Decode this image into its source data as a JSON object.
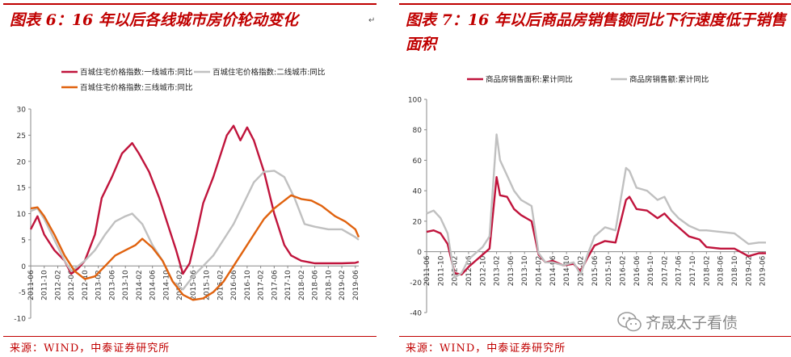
{
  "left_panel": {
    "title": "图表 6：16 年以后各线城市房价轮动变化",
    "source": "来源：WIND，中泰证券研究所"
  },
  "right_panel": {
    "title": "图表 7：16 年以后商品房销售额同比下行速度低于销售面积",
    "source": "来源：WIND，中泰证券研究所"
  },
  "watermark": "齐晟太子看债",
  "chart_data": [
    {
      "type": "line",
      "title": "",
      "ylim": [
        -10,
        30
      ],
      "yticks": [
        -10,
        -5,
        0,
        5,
        10,
        15,
        20,
        25,
        30
      ],
      "xtick_labels": [
        "2011-06",
        "2011-10",
        "2012-02",
        "2012-06",
        "2012-10",
        "2013-02",
        "2013-06",
        "2013-10",
        "2014-02",
        "2014-06",
        "2014-10",
        "2015-02",
        "2015-06",
        "2015-10",
        "2016-02",
        "2016-06",
        "2016-10",
        "2017-02",
        "2017-06",
        "2017-10",
        "2018-02",
        "2018-06",
        "2018-10",
        "2019-02",
        "2019-06"
      ],
      "x_start": "2011-06",
      "x_end": "2019-07",
      "legend_position": "top",
      "series": [
        {
          "name": "百城住宅价格指数:一线城市:同比",
          "color": "#c0143c",
          "points": [
            [
              "2011-06",
              7
            ],
            [
              "2011-08",
              9.5
            ],
            [
              "2011-10",
              6
            ],
            [
              "2012-01",
              3
            ],
            [
              "2012-04",
              1
            ],
            [
              "2012-06",
              -1.5
            ],
            [
              "2012-08",
              -0.5
            ],
            [
              "2012-10",
              1
            ],
            [
              "2013-01",
              6
            ],
            [
              "2013-03",
              13
            ],
            [
              "2013-06",
              17
            ],
            [
              "2013-09",
              21.5
            ],
            [
              "2013-12",
              23.5
            ],
            [
              "2014-02",
              21.5
            ],
            [
              "2014-05",
              18
            ],
            [
              "2014-08",
              13
            ],
            [
              "2014-11",
              7
            ],
            [
              "2015-01",
              3
            ],
            [
              "2015-03",
              -1.5
            ],
            [
              "2015-05",
              0.5
            ],
            [
              "2015-07",
              6
            ],
            [
              "2015-09",
              12
            ],
            [
              "2015-12",
              17
            ],
            [
              "2016-02",
              21
            ],
            [
              "2016-04",
              25
            ],
            [
              "2016-06",
              26.8
            ],
            [
              "2016-08",
              24
            ],
            [
              "2016-10",
              26.5
            ],
            [
              "2016-12",
              24
            ],
            [
              "2017-03",
              18
            ],
            [
              "2017-06",
              10
            ],
            [
              "2017-09",
              4
            ],
            [
              "2017-11",
              2
            ],
            [
              "2018-02",
              1
            ],
            [
              "2018-06",
              0.5
            ],
            [
              "2018-10",
              0.5
            ],
            [
              "2019-02",
              0.5
            ],
            [
              "2019-06",
              0.6
            ],
            [
              "2019-07",
              0.8
            ]
          ]
        },
        {
          "name": "百城住宅价格指数:二线城市:同比",
          "color": "#c0c0c0",
          "points": [
            [
              "2011-06",
              10.5
            ],
            [
              "2011-08",
              11
            ],
            [
              "2011-10",
              9
            ],
            [
              "2012-01",
              5
            ],
            [
              "2012-04",
              1
            ],
            [
              "2012-06",
              -1
            ],
            [
              "2012-08",
              0
            ],
            [
              "2012-10",
              1
            ],
            [
              "2013-01",
              3
            ],
            [
              "2013-04",
              6
            ],
            [
              "2013-07",
              8.5
            ],
            [
              "2013-10",
              9.5
            ],
            [
              "2013-12",
              10
            ],
            [
              "2014-03",
              8
            ],
            [
              "2014-06",
              4
            ],
            [
              "2014-09",
              1
            ],
            [
              "2014-12",
              -3
            ],
            [
              "2015-03",
              -4.5
            ],
            [
              "2015-06",
              -2
            ],
            [
              "2015-09",
              0
            ],
            [
              "2015-12",
              2
            ],
            [
              "2016-03",
              5
            ],
            [
              "2016-06",
              8
            ],
            [
              "2016-09",
              12
            ],
            [
              "2016-12",
              16
            ],
            [
              "2017-03",
              18
            ],
            [
              "2017-06",
              18.2
            ],
            [
              "2017-09",
              17
            ],
            [
              "2017-12",
              13
            ],
            [
              "2018-03",
              8
            ],
            [
              "2018-06",
              7.5
            ],
            [
              "2018-10",
              7
            ],
            [
              "2019-02",
              7
            ],
            [
              "2019-06",
              5.5
            ],
            [
              "2019-07",
              5
            ]
          ]
        },
        {
          "name": "百城住宅价格指数:三线城市:同比",
          "color": "#e0620e",
          "points": [
            [
              "2011-06",
              11
            ],
            [
              "2011-08",
              11.2
            ],
            [
              "2011-10",
              9.5
            ],
            [
              "2012-01",
              6
            ],
            [
              "2012-04",
              2
            ],
            [
              "2012-07",
              -1
            ],
            [
              "2012-10",
              -2.5
            ],
            [
              "2013-01",
              -2
            ],
            [
              "2013-04",
              0
            ],
            [
              "2013-07",
              2
            ],
            [
              "2013-10",
              3
            ],
            [
              "2014-01",
              4
            ],
            [
              "2014-03",
              5.2
            ],
            [
              "2014-06",
              3.5
            ],
            [
              "2014-09",
              1
            ],
            [
              "2014-12",
              -3
            ],
            [
              "2015-03",
              -5.5
            ],
            [
              "2015-06",
              -6.5
            ],
            [
              "2015-09",
              -6.2
            ],
            [
              "2015-12",
              -5
            ],
            [
              "2016-03",
              -3
            ],
            [
              "2016-06",
              0
            ],
            [
              "2016-09",
              3
            ],
            [
              "2016-12",
              6
            ],
            [
              "2017-03",
              9
            ],
            [
              "2017-06",
              11
            ],
            [
              "2017-09",
              12.5
            ],
            [
              "2017-11",
              13.5
            ],
            [
              "2018-02",
              12.8
            ],
            [
              "2018-05",
              12.5
            ],
            [
              "2018-08",
              11.5
            ],
            [
              "2018-12",
              9.5
            ],
            [
              "2019-03",
              8.5
            ],
            [
              "2019-06",
              7
            ],
            [
              "2019-07",
              5.5
            ]
          ]
        }
      ]
    },
    {
      "type": "line",
      "title": "",
      "ylim": [
        -40,
        100
      ],
      "yticks": [
        -40,
        -20,
        0,
        20,
        40,
        60,
        80,
        100
      ],
      "xtick_labels": [
        "2011-06",
        "2011-10",
        "2012-02",
        "2012-06",
        "2012-10",
        "2013-02",
        "2013-06",
        "2013-10",
        "2014-02",
        "2014-06",
        "2014-10",
        "2015-02",
        "2015-06",
        "2015-10",
        "2016-02",
        "2016-06",
        "2016-10",
        "2017-02",
        "2017-06",
        "2017-10",
        "2018-02",
        "2018-06",
        "2018-10",
        "2019-02",
        "2019-06"
      ],
      "x_start": "2011-06",
      "x_end": "2019-07",
      "legend_position": "top",
      "series": [
        {
          "name": "商品房销售面积:累计同比",
          "color": "#c0143c",
          "points": [
            [
              "2011-06",
              13
            ],
            [
              "2011-08",
              14
            ],
            [
              "2011-10",
              12
            ],
            [
              "2011-12",
              5
            ],
            [
              "2012-02",
              -14
            ],
            [
              "2012-04",
              -15
            ],
            [
              "2012-06",
              -10
            ],
            [
              "2012-08",
              -6
            ],
            [
              "2012-10",
              -2
            ],
            [
              "2012-12",
              2
            ],
            [
              "2013-02",
              49
            ],
            [
              "2013-03",
              37
            ],
            [
              "2013-05",
              36
            ],
            [
              "2013-07",
              28
            ],
            [
              "2013-09",
              24
            ],
            [
              "2013-12",
              20
            ],
            [
              "2014-02",
              -2
            ],
            [
              "2014-04",
              -7
            ],
            [
              "2014-06",
              -6
            ],
            [
              "2014-09",
              -9
            ],
            [
              "2014-12",
              -8
            ],
            [
              "2015-02",
              -13
            ],
            [
              "2015-04",
              -4
            ],
            [
              "2015-06",
              4
            ],
            [
              "2015-09",
              7
            ],
            [
              "2015-12",
              6
            ],
            [
              "2016-03",
              34
            ],
            [
              "2016-04",
              36
            ],
            [
              "2016-06",
              28
            ],
            [
              "2016-09",
              27
            ],
            [
              "2016-12",
              22
            ],
            [
              "2017-02",
              25
            ],
            [
              "2017-04",
              20
            ],
            [
              "2017-06",
              16
            ],
            [
              "2017-09",
              10
            ],
            [
              "2017-12",
              8
            ],
            [
              "2018-02",
              3
            ],
            [
              "2018-06",
              2
            ],
            [
              "2018-10",
              2
            ],
            [
              "2019-02",
              -3
            ],
            [
              "2019-05",
              -1
            ],
            [
              "2019-07",
              -1
            ]
          ]
        },
        {
          "name": "商品房销售额:累计同比",
          "color": "#c0c0c0",
          "points": [
            [
              "2011-06",
              25
            ],
            [
              "2011-08",
              27
            ],
            [
              "2011-10",
              22
            ],
            [
              "2011-12",
              12
            ],
            [
              "2012-02",
              -17
            ],
            [
              "2012-04",
              -14
            ],
            [
              "2012-06",
              -5
            ],
            [
              "2012-08",
              -1
            ],
            [
              "2012-10",
              3
            ],
            [
              "2012-12",
              10
            ],
            [
              "2013-02",
              77
            ],
            [
              "2013-03",
              60
            ],
            [
              "2013-05",
              50
            ],
            [
              "2013-07",
              40
            ],
            [
              "2013-09",
              34
            ],
            [
              "2013-12",
              30
            ],
            [
              "2014-02",
              -1
            ],
            [
              "2014-04",
              -7
            ],
            [
              "2014-06",
              -7
            ],
            [
              "2014-09",
              -9
            ],
            [
              "2014-12",
              -7
            ],
            [
              "2015-02",
              -15
            ],
            [
              "2015-04",
              -2
            ],
            [
              "2015-06",
              10
            ],
            [
              "2015-09",
              16
            ],
            [
              "2015-12",
              14
            ],
            [
              "2016-03",
              55
            ],
            [
              "2016-04",
              53
            ],
            [
              "2016-06",
              42
            ],
            [
              "2016-09",
              40
            ],
            [
              "2016-12",
              34
            ],
            [
              "2017-02",
              36
            ],
            [
              "2017-04",
              27
            ],
            [
              "2017-06",
              22
            ],
            [
              "2017-09",
              17
            ],
            [
              "2017-12",
              14
            ],
            [
              "2018-02",
              14
            ],
            [
              "2018-06",
              13
            ],
            [
              "2018-10",
              12
            ],
            [
              "2019-02",
              5
            ],
            [
              "2019-05",
              6
            ],
            [
              "2019-07",
              6
            ]
          ]
        }
      ]
    }
  ]
}
